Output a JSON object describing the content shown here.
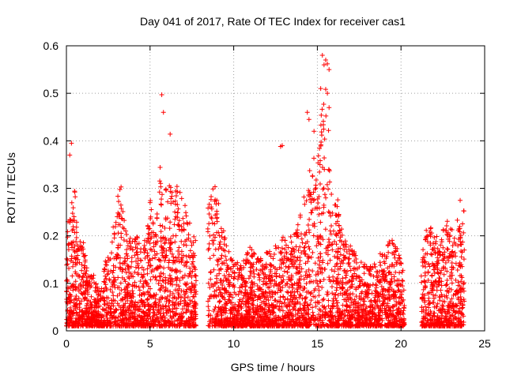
{
  "chart_data": {
    "type": "scatter",
    "title": "Day 041 of 2017, Rate Of TEC Index for receiver cas1",
    "xlabel": "GPS time / hours",
    "ylabel": "ROTI / TECUs",
    "xlim": [
      0,
      25
    ],
    "ylim": [
      0,
      0.6
    ],
    "xticks": [
      0,
      5,
      10,
      15,
      20,
      25
    ],
    "yticks": [
      0,
      0.1,
      0.2,
      0.3,
      0.4,
      0.5,
      0.6
    ],
    "xtick_labels": [
      "0",
      "5",
      "10",
      "15",
      "20",
      "25"
    ],
    "ytick_labels": [
      "0",
      "0.1",
      "0.2",
      "0.3",
      "0.4",
      "0.5",
      "0.6"
    ],
    "grid": true,
    "marker": "+",
    "color": "#ff0000",
    "gaps_hours": [
      [
        7.75,
        8.45
      ],
      [
        20.2,
        21.2
      ],
      [
        23.8,
        25
      ]
    ],
    "envelope": {
      "x": [
        0.0,
        0.1,
        0.3,
        0.5,
        0.7,
        1.0,
        1.3,
        1.6,
        2.0,
        2.3,
        2.6,
        3.0,
        3.2,
        3.5,
        3.8,
        4.2,
        4.6,
        5.0,
        5.3,
        5.6,
        5.8,
        6.1,
        6.4,
        6.8,
        7.2,
        7.6,
        8.5,
        8.8,
        9.2,
        9.6,
        10.0,
        10.5,
        11.0,
        11.5,
        12.0,
        12.5,
        13.0,
        13.5,
        14.0,
        14.3,
        14.6,
        14.9,
        15.2,
        15.4,
        15.6,
        15.8,
        16.1,
        16.5,
        17.0,
        17.5,
        18.0,
        18.5,
        19.0,
        19.5,
        20.0,
        20.2,
        21.2,
        21.6,
        22.0,
        22.4,
        22.8,
        23.2,
        23.6,
        23.8
      ],
      "upper": [
        0.16,
        0.24,
        0.28,
        0.3,
        0.18,
        0.2,
        0.12,
        0.12,
        0.08,
        0.15,
        0.17,
        0.27,
        0.33,
        0.22,
        0.2,
        0.2,
        0.17,
        0.28,
        0.2,
        0.35,
        0.3,
        0.3,
        0.33,
        0.3,
        0.25,
        0.2,
        0.27,
        0.33,
        0.25,
        0.18,
        0.15,
        0.15,
        0.18,
        0.15,
        0.17,
        0.18,
        0.2,
        0.2,
        0.25,
        0.3,
        0.35,
        0.4,
        0.45,
        0.5,
        0.55,
        0.3,
        0.3,
        0.22,
        0.18,
        0.15,
        0.14,
        0.15,
        0.18,
        0.2,
        0.15,
        0.12,
        0.15,
        0.25,
        0.2,
        0.2,
        0.25,
        0.2,
        0.3,
        0.25
      ]
    },
    "highlights": [
      {
        "x": 0.3,
        "y": 0.395
      },
      {
        "x": 0.2,
        "y": 0.37
      },
      {
        "x": 5.7,
        "y": 0.497
      },
      {
        "x": 5.8,
        "y": 0.46
      },
      {
        "x": 6.2,
        "y": 0.414
      },
      {
        "x": 12.8,
        "y": 0.388
      },
      {
        "x": 12.9,
        "y": 0.39
      },
      {
        "x": 14.4,
        "y": 0.46
      },
      {
        "x": 14.5,
        "y": 0.445
      },
      {
        "x": 15.3,
        "y": 0.58
      },
      {
        "x": 15.4,
        "y": 0.56
      },
      {
        "x": 15.5,
        "y": 0.57
      },
      {
        "x": 15.6,
        "y": 0.562
      },
      {
        "x": 15.7,
        "y": 0.55
      },
      {
        "x": 15.6,
        "y": 0.5
      },
      {
        "x": 15.7,
        "y": 0.47
      },
      {
        "x": 15.2,
        "y": 0.51
      },
      {
        "x": 14.8,
        "y": 0.42
      }
    ]
  }
}
